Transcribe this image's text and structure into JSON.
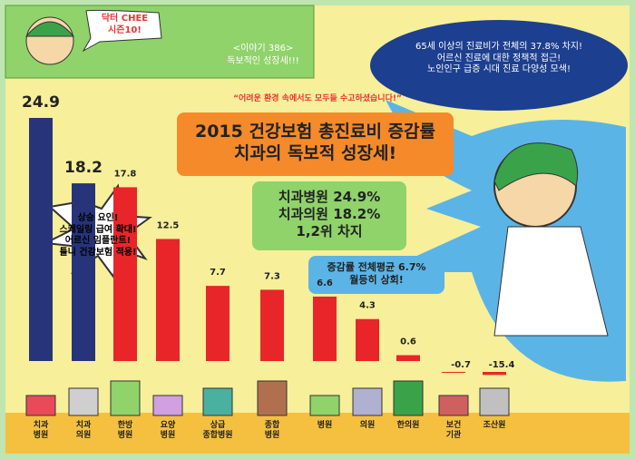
{
  "header": {
    "badge": "닥터 CHEE\n시즌10!",
    "episode": "<이야기 386>",
    "episode_title": "독보적인 성장세!!!"
  },
  "bubble": "65세 이상의 진료비가 전체의 37.8% 차지!\n어르신 진료에 대한 정책적 접근!\n노인인구 급증 시대 진료 다양성 모색!",
  "starburst": "상승 요인!\n스케일링 급여 확대!\n어르신 임플란트!\n틀니 건강보험 적용!",
  "highlight": "치과병원 24.9%\n치과의원 18.2%\n1,2위 차지",
  "note": "증감률 전체평균 6.7%\n월등히 상회!",
  "chart_data": {
    "type": "bar",
    "subtitle": "“어려운 환경 속에서도 모두들 수고하셨습니다!”",
    "title": "2015 건강보험 총진료비 증감률\n치과의 독보적 성장세!",
    "categories": [
      "치과\n병원",
      "치과\n의원",
      "한방\n병원",
      "요양\n병원",
      "상급\n종합병원",
      "종합\n병원",
      "병원",
      "의원",
      "한의원",
      "보건\n기관",
      "조산원"
    ],
    "values": [
      24.9,
      18.2,
      17.8,
      12.5,
      7.7,
      7.3,
      6.6,
      4.3,
      0.6,
      -0.7,
      -15.4
    ],
    "colors": [
      "#27347a",
      "#27347a",
      "#e8262a",
      "#e8262a",
      "#e8262a",
      "#e8262a",
      "#e8262a",
      "#e8262a",
      "#e8262a",
      "#e8262a",
      "#e8262a"
    ]
  }
}
